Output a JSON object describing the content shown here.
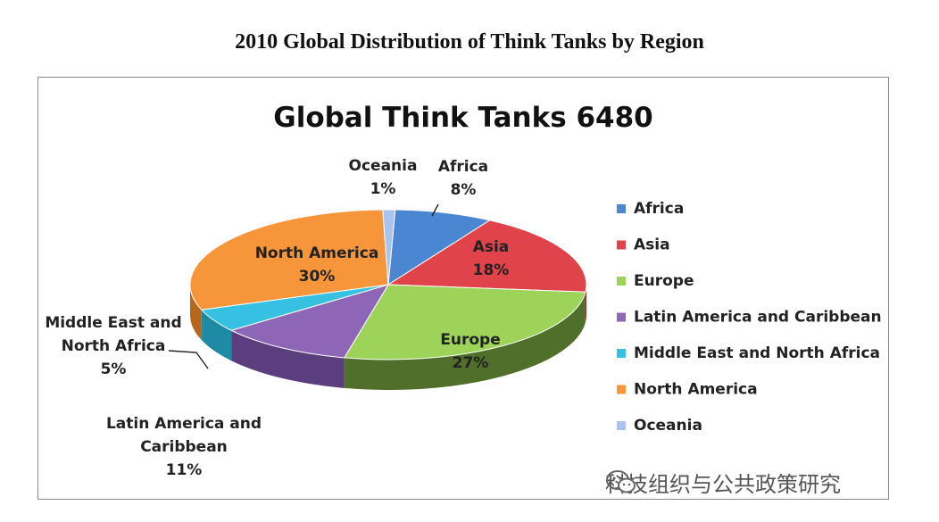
{
  "page": {
    "title": "2010 Global Distribution of Think Tanks by Region",
    "watermark": "科技组织与公共政策研究"
  },
  "chart_data": {
    "type": "pie",
    "title": "Global Think Tanks 6480",
    "legend_position": "right",
    "slices": [
      {
        "name": "Africa",
        "value": 8,
        "label": "8%",
        "color": "#4a86d2",
        "side": "#2e5f9e"
      },
      {
        "name": "Asia",
        "value": 18,
        "label": "18%",
        "color": "#e0444a",
        "side": "#a52a2e"
      },
      {
        "name": "Europe",
        "value": 27,
        "label": "27%",
        "color": "#9ed35a",
        "side": "#4f6f2a"
      },
      {
        "name": "Latin America and Caribbean",
        "value": 11,
        "label": "11%",
        "color": "#8e66b8",
        "side": "#5b3e7d"
      },
      {
        "name": "Middle East and North Africa",
        "value": 5,
        "label": "5%",
        "color": "#36c0e2",
        "side": "#1f8aa4"
      },
      {
        "name": "North America",
        "value": 30,
        "label": "30%",
        "color": "#f7953a",
        "side": "#b8651c"
      },
      {
        "name": "Oceania",
        "value": 1,
        "label": "1%",
        "color": "#a9c4f0",
        "side": "#7592c0"
      }
    ],
    "slice_labels": [
      {
        "lines": [
          "Africa",
          "8%"
        ]
      },
      {
        "lines": [
          "Asia",
          "18%"
        ]
      },
      {
        "lines": [
          "Europe",
          "27%"
        ]
      },
      {
        "lines": [
          "Latin America and",
          "Caribbean",
          "11%"
        ]
      },
      {
        "lines": [
          "Middle East and",
          "North Africa",
          "5%"
        ]
      },
      {
        "lines": [
          "North America",
          "30%"
        ]
      },
      {
        "lines": [
          "Oceania",
          "1%"
        ]
      }
    ]
  }
}
